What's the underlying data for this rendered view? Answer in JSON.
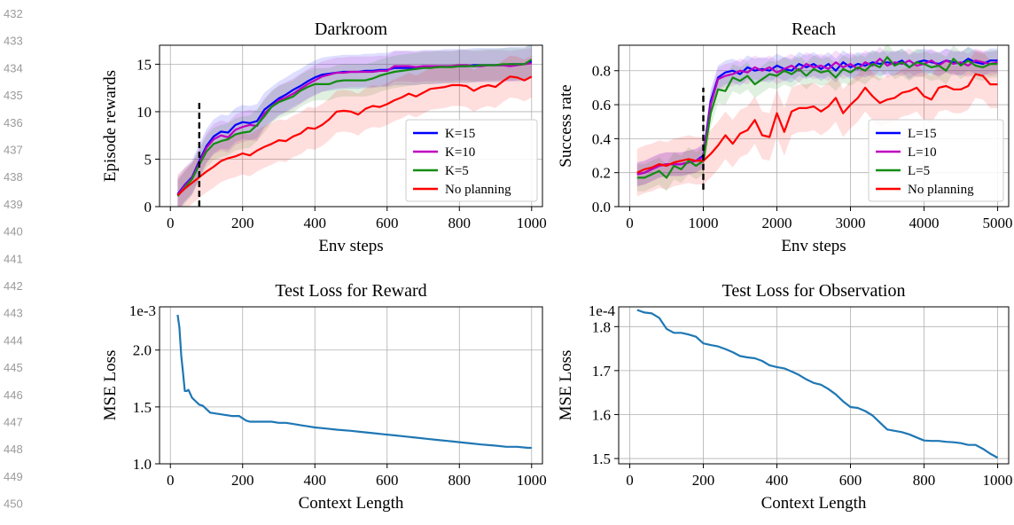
{
  "line_numbers": [
    "432",
    "433",
    "434",
    "435",
    "436",
    "437",
    "438",
    "439",
    "440",
    "441",
    "442",
    "443",
    "444",
    "445",
    "446",
    "447",
    "448",
    "449",
    "450"
  ],
  "colors": {
    "k15": "#0000ff",
    "k10": "#bf00bf",
    "k5": "#138c13",
    "noplan": "#ff0000",
    "loss": "#1f77b4",
    "grid": "#b0b0b0"
  },
  "chart_data": [
    {
      "id": "darkroom",
      "type": "line",
      "title": "Darkroom",
      "xlabel": "Env steps",
      "ylabel": "Episode rewards",
      "xlim": [
        -30,
        1030
      ],
      "ylim": [
        0,
        17
      ],
      "xticks": [
        "0",
        "200",
        "400",
        "600",
        "800",
        "1000"
      ],
      "xtick_values": [
        0,
        200,
        400,
        600,
        800,
        1000
      ],
      "yticks": [
        "0",
        "5",
        "10",
        "15"
      ],
      "ytick_values": [
        0,
        5,
        10,
        15
      ],
      "grid": true,
      "legend_position": "lower-right",
      "vline_x": 80,
      "vline_y": [
        0,
        11
      ],
      "x": [
        20,
        40,
        60,
        80,
        100,
        120,
        140,
        160,
        180,
        200,
        220,
        240,
        260,
        280,
        300,
        320,
        340,
        360,
        380,
        400,
        420,
        440,
        460,
        480,
        500,
        520,
        540,
        560,
        580,
        600,
        620,
        640,
        660,
        680,
        700,
        720,
        740,
        760,
        780,
        800,
        820,
        840,
        860,
        880,
        900,
        920,
        940,
        960,
        980,
        1000
      ],
      "series": [
        {
          "name": "K=15",
          "color_key": "k15",
          "band": 1.8,
          "values": [
            1.3,
            2.3,
            3.1,
            4.8,
            6.4,
            7.4,
            7.9,
            7.8,
            8.6,
            8.9,
            8.8,
            9.0,
            10.2,
            10.8,
            11.4,
            11.8,
            12.3,
            12.7,
            13.2,
            13.6,
            13.9,
            14.0,
            14.1,
            14.2,
            14.2,
            14.2,
            14.3,
            14.3,
            14.4,
            14.4,
            14.6,
            14.6,
            14.6,
            14.6,
            14.7,
            14.7,
            14.7,
            14.8,
            14.8,
            14.8,
            14.8,
            14.9,
            14.9,
            14.9,
            14.9,
            14.9,
            15.0,
            15.0,
            15.0,
            15.3
          ]
        },
        {
          "name": "K=10",
          "color_key": "k10",
          "band": 1.6,
          "values": [
            1.2,
            2.2,
            3.0,
            4.6,
            6.2,
            7.1,
            7.5,
            7.3,
            8.1,
            8.4,
            8.6,
            8.5,
            9.8,
            10.5,
            11.2,
            11.5,
            11.9,
            12.4,
            12.9,
            13.3,
            13.7,
            13.9,
            14.1,
            14.1,
            14.2,
            14.2,
            14.2,
            14.2,
            14.3,
            14.3,
            14.8,
            14.8,
            14.8,
            14.7,
            14.8,
            14.8,
            14.8,
            14.8,
            14.8,
            14.9,
            14.9,
            14.8,
            14.8,
            14.9,
            14.9,
            14.9,
            14.8,
            14.9,
            15.0,
            15.1
          ]
        },
        {
          "name": "K=5",
          "color_key": "k5",
          "band": 1.7,
          "values": [
            1.1,
            2.0,
            2.9,
            4.4,
            5.8,
            6.6,
            6.9,
            7.1,
            7.6,
            7.8,
            7.9,
            8.6,
            9.5,
            10.5,
            11.0,
            11.3,
            11.6,
            12.2,
            12.6,
            12.9,
            12.9,
            12.9,
            13.2,
            13.3,
            13.3,
            13.3,
            13.3,
            13.5,
            13.8,
            14.0,
            14.2,
            14.3,
            14.4,
            14.5,
            14.6,
            14.6,
            14.7,
            14.7,
            14.7,
            14.8,
            14.8,
            14.8,
            14.9,
            14.9,
            14.9,
            15.0,
            15.0,
            15.0,
            15.0,
            15.5
          ]
        },
        {
          "name": "No planning",
          "color_key": "noplan",
          "band": 2.2,
          "values": [
            1.2,
            1.9,
            2.5,
            3.1,
            3.7,
            4.2,
            4.8,
            5.1,
            5.3,
            5.6,
            5.4,
            5.9,
            6.3,
            6.6,
            7.0,
            6.9,
            7.4,
            7.7,
            8.3,
            8.2,
            8.6,
            9.2,
            10.0,
            10.1,
            10.0,
            9.7,
            10.3,
            10.6,
            10.5,
            10.8,
            11.2,
            11.5,
            11.9,
            11.6,
            12.0,
            12.4,
            12.5,
            12.6,
            12.8,
            12.8,
            12.7,
            12.2,
            12.6,
            12.8,
            12.6,
            13.2,
            13.7,
            13.6,
            13.3,
            13.7
          ]
        }
      ]
    },
    {
      "id": "reach",
      "type": "line",
      "title": "Reach",
      "xlabel": "Env steps",
      "ylabel": "Success rate",
      "xlim": [
        -150,
        5150
      ],
      "ylim": [
        0,
        0.95
      ],
      "xticks": [
        "0",
        "1000",
        "2000",
        "3000",
        "4000",
        "5000"
      ],
      "xtick_values": [
        0,
        1000,
        2000,
        3000,
        4000,
        5000
      ],
      "yticks": [
        "0.0",
        "0.2",
        "0.4",
        "0.6",
        "0.8"
      ],
      "ytick_values": [
        0,
        0.2,
        0.4,
        0.6,
        0.8
      ],
      "grid": true,
      "legend_position": "lower-right",
      "vline_x": 1000,
      "vline_y": [
        0.1,
        0.7
      ],
      "x": [
        100,
        200,
        300,
        400,
        500,
        600,
        700,
        800,
        900,
        1000,
        1100,
        1200,
        1300,
        1400,
        1500,
        1600,
        1700,
        1800,
        1900,
        2000,
        2100,
        2200,
        2300,
        2400,
        2500,
        2600,
        2700,
        2800,
        2900,
        3000,
        3100,
        3200,
        3300,
        3400,
        3500,
        3600,
        3700,
        3800,
        3900,
        4000,
        4100,
        4200,
        4300,
        4400,
        4500,
        4600,
        4700,
        4800,
        4900,
        5000
      ],
      "series": [
        {
          "name": "L=15",
          "color_key": "k15",
          "band": 0.07,
          "values": [
            0.19,
            0.2,
            0.22,
            0.24,
            0.25,
            0.25,
            0.25,
            0.26,
            0.27,
            0.3,
            0.62,
            0.76,
            0.79,
            0.8,
            0.78,
            0.82,
            0.8,
            0.81,
            0.8,
            0.83,
            0.81,
            0.8,
            0.84,
            0.82,
            0.84,
            0.81,
            0.84,
            0.8,
            0.85,
            0.82,
            0.84,
            0.83,
            0.85,
            0.84,
            0.85,
            0.84,
            0.86,
            0.82,
            0.85,
            0.86,
            0.85,
            0.84,
            0.86,
            0.85,
            0.84,
            0.87,
            0.85,
            0.84,
            0.86,
            0.86
          ]
        },
        {
          "name": "L=10",
          "color_key": "k10",
          "band": 0.07,
          "values": [
            0.19,
            0.2,
            0.22,
            0.24,
            0.25,
            0.25,
            0.25,
            0.26,
            0.27,
            0.29,
            0.6,
            0.75,
            0.77,
            0.78,
            0.8,
            0.79,
            0.82,
            0.8,
            0.82,
            0.79,
            0.81,
            0.83,
            0.8,
            0.84,
            0.82,
            0.83,
            0.81,
            0.85,
            0.82,
            0.84,
            0.81,
            0.85,
            0.83,
            0.87,
            0.83,
            0.85,
            0.84,
            0.86,
            0.83,
            0.84,
            0.86,
            0.83,
            0.86,
            0.84,
            0.85,
            0.83,
            0.86,
            0.85,
            0.84,
            0.85
          ]
        },
        {
          "name": "L=5",
          "color_key": "k5",
          "band": 0.08,
          "values": [
            0.17,
            0.17,
            0.19,
            0.21,
            0.17,
            0.24,
            0.22,
            0.27,
            0.24,
            0.27,
            0.55,
            0.69,
            0.68,
            0.76,
            0.74,
            0.77,
            0.72,
            0.75,
            0.78,
            0.77,
            0.8,
            0.78,
            0.81,
            0.77,
            0.81,
            0.79,
            0.8,
            0.76,
            0.81,
            0.79,
            0.82,
            0.8,
            0.84,
            0.82,
            0.88,
            0.83,
            0.85,
            0.82,
            0.85,
            0.84,
            0.82,
            0.83,
            0.8,
            0.87,
            0.83,
            0.86,
            0.83,
            0.82,
            0.84,
            0.84
          ]
        },
        {
          "name": "No planning",
          "color_key": "noplan",
          "band": 0.14,
          "values": [
            0.2,
            0.22,
            0.23,
            0.25,
            0.24,
            0.26,
            0.27,
            0.28,
            0.27,
            0.27,
            0.31,
            0.36,
            0.42,
            0.37,
            0.43,
            0.45,
            0.51,
            0.42,
            0.41,
            0.55,
            0.44,
            0.56,
            0.58,
            0.58,
            0.59,
            0.56,
            0.59,
            0.64,
            0.55,
            0.6,
            0.64,
            0.7,
            0.65,
            0.61,
            0.63,
            0.64,
            0.67,
            0.68,
            0.7,
            0.65,
            0.63,
            0.7,
            0.71,
            0.69,
            0.69,
            0.71,
            0.78,
            0.77,
            0.72,
            0.72
          ]
        }
      ]
    },
    {
      "id": "reward_loss",
      "type": "line",
      "title": "Test Loss for Reward",
      "xlabel": "Context Length",
      "ylabel": "MSE Loss",
      "scale_label": "1e-3",
      "xlim": [
        -30,
        1030
      ],
      "ylim": [
        1.0,
        2.38
      ],
      "xticks": [
        "0",
        "200",
        "400",
        "600",
        "800",
        "1000"
      ],
      "xtick_values": [
        0,
        200,
        400,
        600,
        800,
        1000
      ],
      "yticks": [
        "1.0",
        "1.5",
        "2.0"
      ],
      "ytick_values": [
        1.0,
        1.5,
        2.0
      ],
      "grid": true,
      "x": [
        20,
        25,
        30,
        35,
        40,
        45,
        50,
        60,
        70,
        80,
        90,
        100,
        110,
        130,
        150,
        170,
        190,
        200,
        210,
        220,
        240,
        260,
        280,
        300,
        320,
        340,
        360,
        380,
        400,
        430,
        460,
        500,
        530,
        560,
        590,
        620,
        650,
        680,
        710,
        740,
        770,
        800,
        830,
        860,
        900,
        930,
        960,
        990,
        1000
      ],
      "series": [
        {
          "name": "",
          "color_key": "loss",
          "values": [
            2.31,
            2.2,
            1.95,
            1.8,
            1.64,
            1.64,
            1.65,
            1.58,
            1.55,
            1.52,
            1.51,
            1.48,
            1.45,
            1.44,
            1.43,
            1.42,
            1.42,
            1.4,
            1.38,
            1.37,
            1.37,
            1.37,
            1.37,
            1.36,
            1.36,
            1.35,
            1.34,
            1.33,
            1.32,
            1.31,
            1.3,
            1.29,
            1.28,
            1.27,
            1.26,
            1.25,
            1.24,
            1.23,
            1.22,
            1.21,
            1.2,
            1.19,
            1.18,
            1.17,
            1.16,
            1.15,
            1.15,
            1.14,
            1.14
          ]
        }
      ]
    },
    {
      "id": "obs_loss",
      "type": "line",
      "title": "Test Loss for Observation",
      "xlabel": "Context Length",
      "ylabel": "MSE Loss",
      "scale_label": "1e-4",
      "xlim": [
        -30,
        1030
      ],
      "ylim": [
        1.488,
        1.845
      ],
      "xticks": [
        "0",
        "200",
        "400",
        "600",
        "800",
        "1000"
      ],
      "xtick_values": [
        0,
        200,
        400,
        600,
        800,
        1000
      ],
      "yticks": [
        "1.5",
        "1.6",
        "1.7",
        "1.8"
      ],
      "ytick_values": [
        1.5,
        1.6,
        1.7,
        1.8
      ],
      "grid": true,
      "x": [
        20,
        40,
        60,
        80,
        100,
        120,
        140,
        160,
        180,
        200,
        220,
        240,
        260,
        280,
        300,
        320,
        340,
        360,
        380,
        400,
        420,
        440,
        460,
        480,
        500,
        520,
        540,
        560,
        580,
        600,
        620,
        640,
        660,
        680,
        700,
        720,
        740,
        760,
        780,
        800,
        820,
        840,
        860,
        880,
        900,
        920,
        940,
        960,
        980,
        1000
      ],
      "series": [
        {
          "name": "",
          "color_key": "loss",
          "values": [
            1.838,
            1.832,
            1.83,
            1.82,
            1.795,
            1.786,
            1.786,
            1.782,
            1.777,
            1.762,
            1.758,
            1.755,
            1.749,
            1.742,
            1.733,
            1.73,
            1.728,
            1.722,
            1.712,
            1.708,
            1.705,
            1.698,
            1.69,
            1.68,
            1.672,
            1.668,
            1.658,
            1.646,
            1.63,
            1.617,
            1.615,
            1.608,
            1.598,
            1.582,
            1.566,
            1.563,
            1.56,
            1.555,
            1.548,
            1.541,
            1.54,
            1.54,
            1.538,
            1.537,
            1.535,
            1.531,
            1.531,
            1.522,
            1.511,
            1.502
          ]
        }
      ]
    }
  ]
}
